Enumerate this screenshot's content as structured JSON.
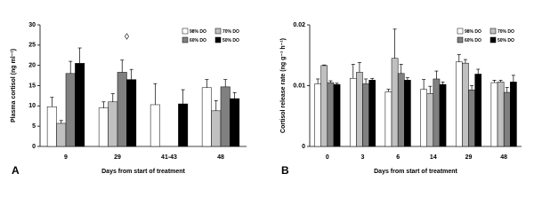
{
  "chart_data": [
    {
      "type": "bar",
      "panel_label": "A",
      "ylabel": "Plasma cortisol (ng ml⁻¹)",
      "xlabel": "Days from start of treatment",
      "annotation": "◊",
      "legend": "upper right",
      "categories": [
        "9",
        "29",
        "41-43",
        "48"
      ],
      "ylim": [
        0,
        30
      ],
      "yticks": [
        0,
        5,
        10,
        15,
        20,
        25,
        30
      ],
      "series": [
        {
          "name": "98% DO",
          "color": "#ffffff",
          "values": [
            9.8,
            9.5,
            10.3,
            14.5
          ],
          "errors": [
            2.3,
            1.5,
            5.2,
            2
          ]
        },
        {
          "name": "70% DO",
          "color": "#c0c0c0",
          "values": [
            5.7,
            11,
            null,
            8.8
          ],
          "errors": [
            0.7,
            2,
            null,
            2.5
          ]
        },
        {
          "name": "60% DO",
          "color": "#808080",
          "values": [
            18,
            18.3,
            null,
            14.7
          ],
          "errors": [
            3,
            3,
            null,
            1.8
          ]
        },
        {
          "name": "50% DO",
          "color": "#000000",
          "values": [
            20.5,
            16.5,
            10.5,
            11.8
          ],
          "errors": [
            3.8,
            2.5,
            3.5,
            1.5
          ]
        }
      ]
    },
    {
      "type": "bar",
      "panel_label": "B",
      "ylabel": "Cortisol release rate (ng g⁻¹ h⁻¹)",
      "xlabel": "Days from start of treatment",
      "legend": "upper right",
      "categories": [
        "0",
        "3",
        "6",
        "14",
        "29",
        "48"
      ],
      "ylim": [
        0,
        0.02
      ],
      "yticks": [
        0,
        0.01,
        0.02
      ],
      "series": [
        {
          "name": "98% DO",
          "color": "#ffffff",
          "values": [
            0.0103,
            0.0112,
            0.009,
            0.0094,
            0.0139,
            0.0105
          ],
          "errors": [
            0.0008,
            0.0023,
            0.0004,
            0.0016,
            0.0012,
            0.0004
          ]
        },
        {
          "name": "70% DO",
          "color": "#c0c0c0",
          "values": [
            0.0133,
            0.0122,
            0.0145,
            0.0087,
            0.0137,
            0.0106
          ],
          "errors": [
            0.0001,
            0.0016,
            0.0048,
            0.0012,
            0.0006,
            0.0003
          ]
        },
        {
          "name": "60% DO",
          "color": "#808080",
          "values": [
            0.0105,
            0.0103,
            0.012,
            0.0111,
            0.0093,
            0.0089
          ],
          "errors": [
            0.0003,
            0.0008,
            0.0015,
            0.0013,
            0.0007,
            0.0008
          ]
        },
        {
          "name": "50% DO",
          "color": "#000000",
          "values": [
            0.0102,
            0.0109,
            0.0109,
            0.0102,
            0.0119,
            0.0106
          ],
          "errors": [
            0.0002,
            0.0003,
            0.0004,
            0.0004,
            0.0008,
            0.0011
          ]
        }
      ]
    }
  ]
}
